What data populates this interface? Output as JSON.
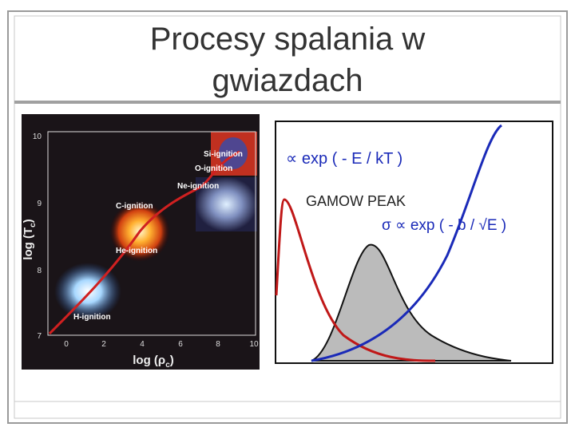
{
  "title": {
    "lines": [
      "Procesy spalania w",
      "gwiazdach"
    ]
  },
  "left_figure": {
    "y_axis": {
      "label": "log (T",
      "sub": "c",
      "close": ")",
      "ticks": [
        "10",
        "9",
        "8",
        "7"
      ]
    },
    "x_axis": {
      "label": "log (ρ",
      "sub": "c",
      "close": ")",
      "ticks": [
        "0",
        "2",
        "4",
        "6",
        "8",
        "10"
      ]
    },
    "annotations": [
      "Si-ignition",
      "O-ignition",
      "Ne-ignition",
      "C-ignition",
      "He-ignition",
      "H-ignition"
    ]
  },
  "right_figure": {
    "labels": [
      "∝ exp ( - E / kT )",
      "GAMOW PEAK",
      "σ ∝ exp ( - b / √E )"
    ]
  }
}
